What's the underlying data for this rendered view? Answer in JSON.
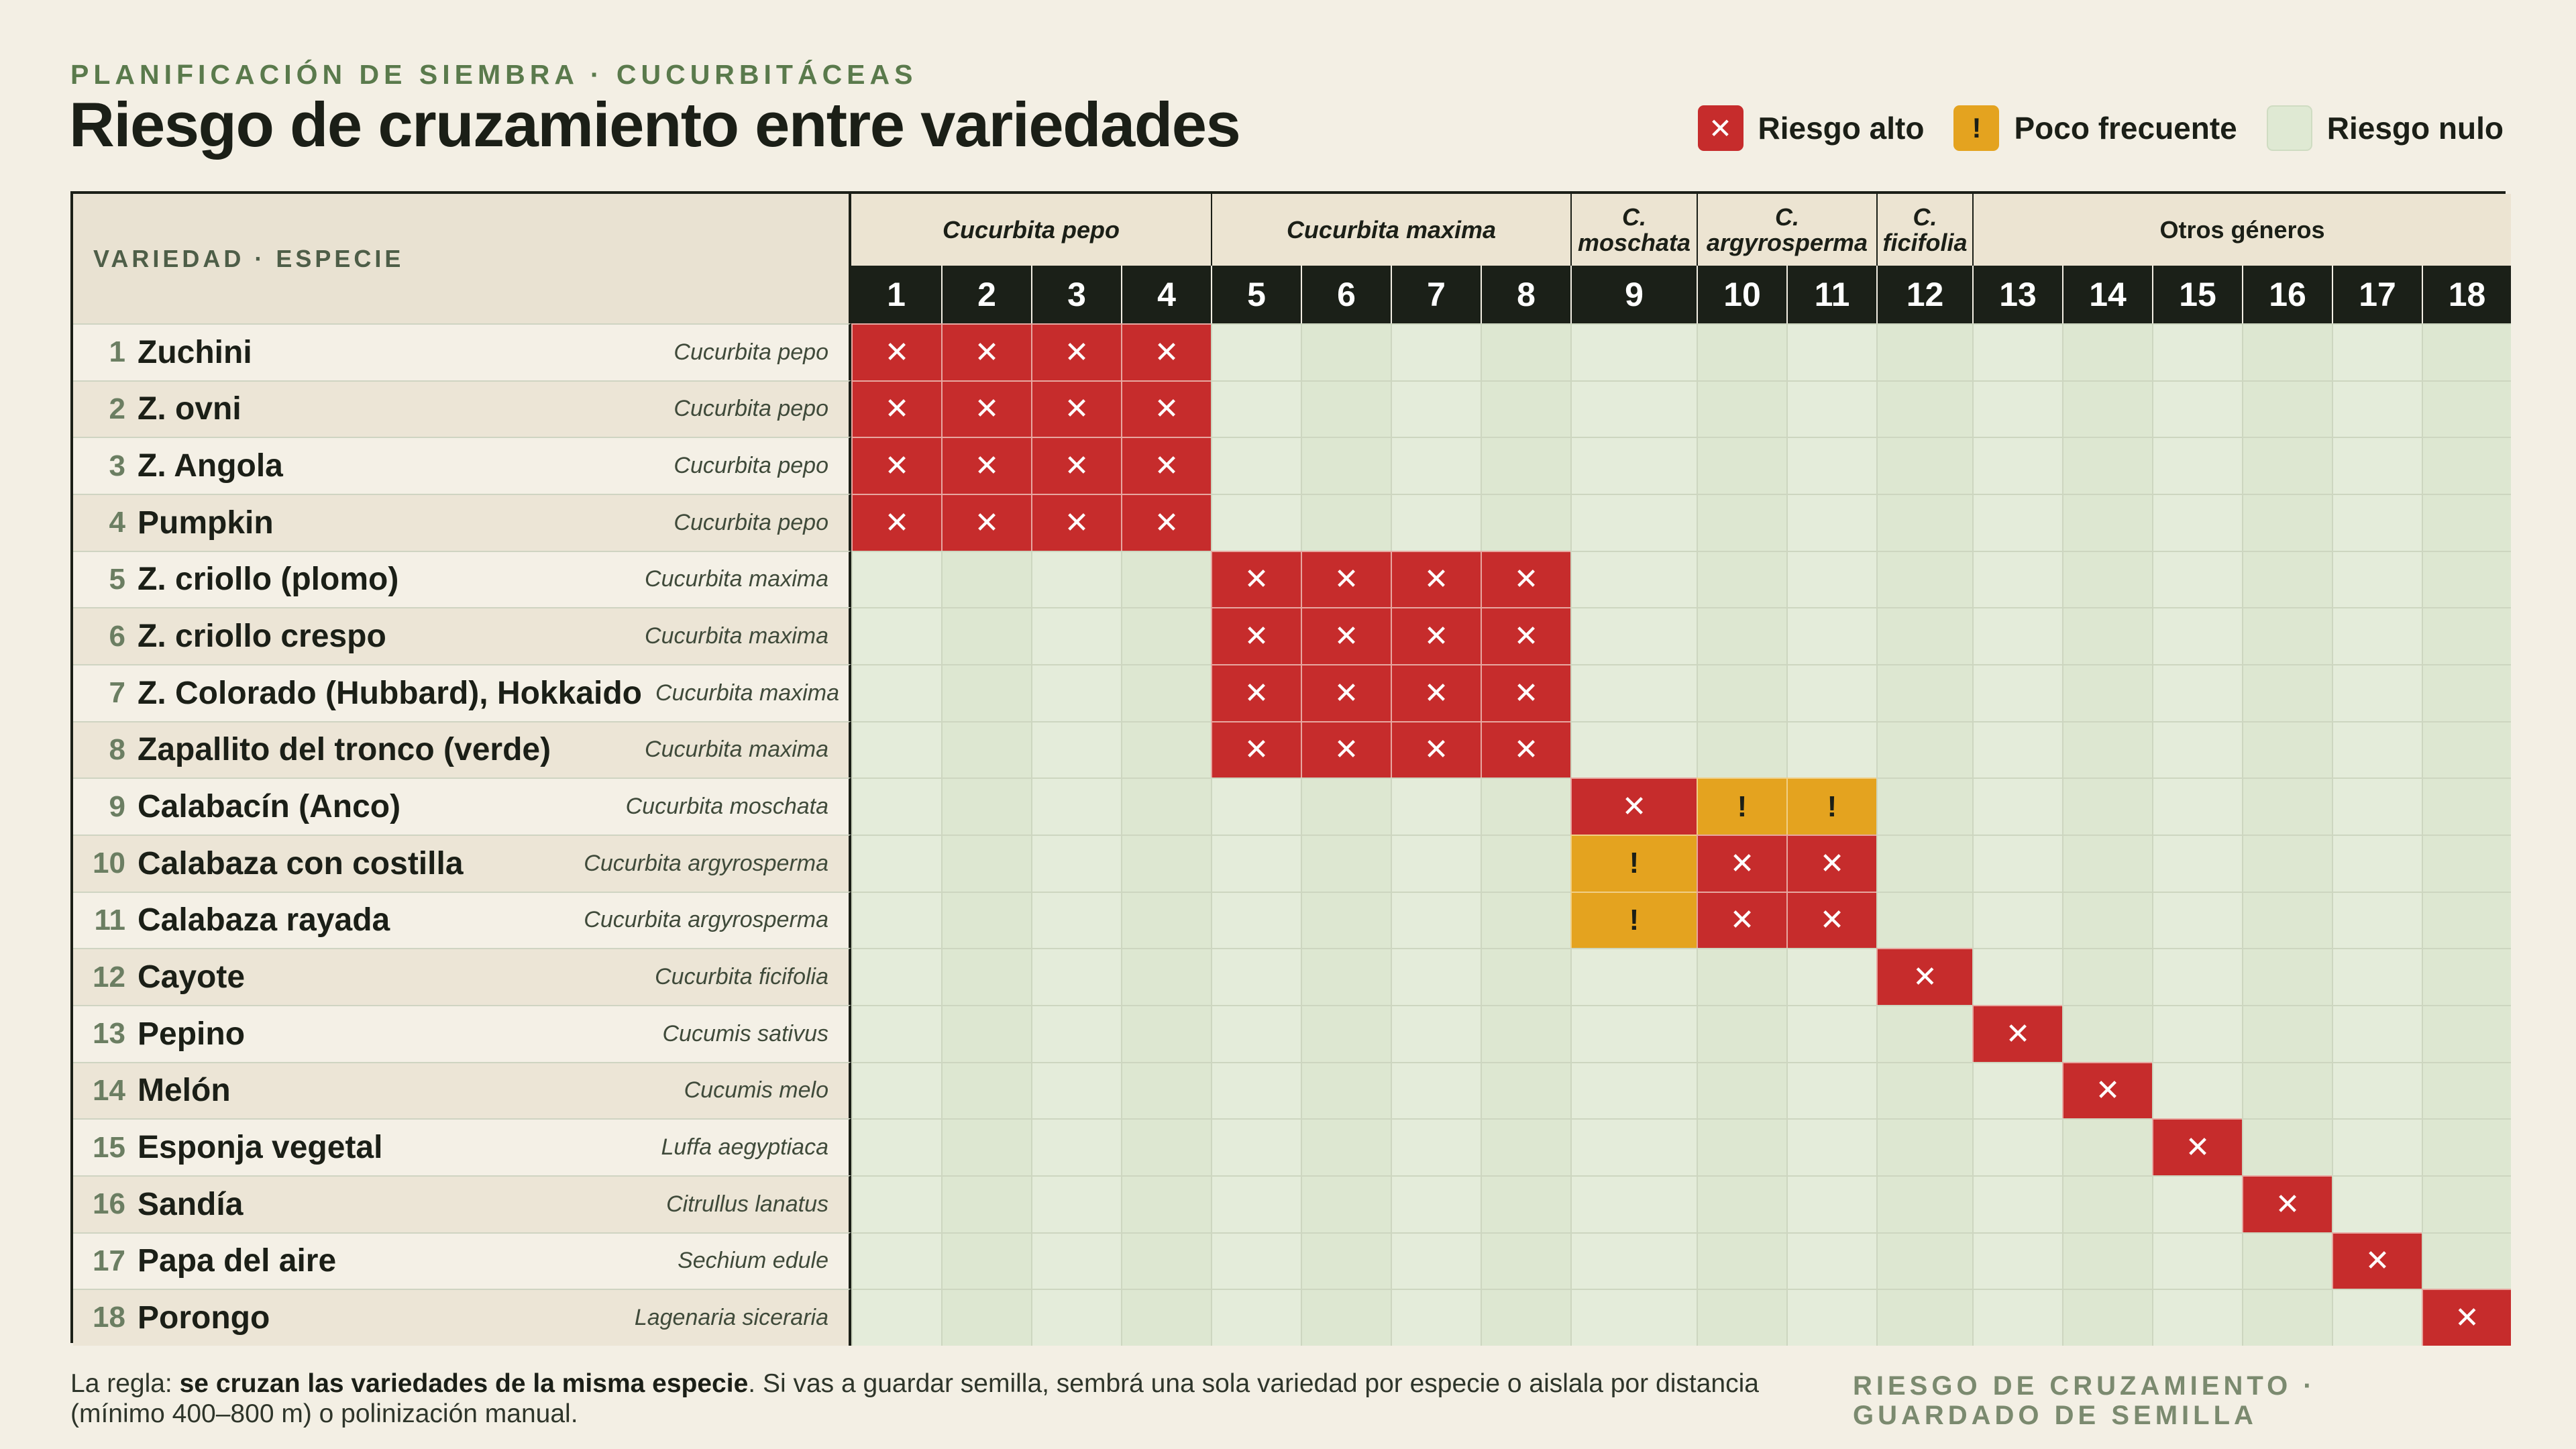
{
  "header": {
    "kicker": "PLANIFICACIÓN DE SIEMBRA · CUCURBITÁCEAS",
    "title": "Riesgo de cruzamiento entre variedades"
  },
  "legend": {
    "items": [
      {
        "label": "Riesgo alto",
        "symbol": "✕",
        "color": "#c62c2c"
      },
      {
        "label": "Poco frecuente",
        "symbol": "!",
        "color": "#e4a31f"
      },
      {
        "label": "Riesgo nulo",
        "symbol": "",
        "color": "#dfe9d3"
      }
    ]
  },
  "table": {
    "corner_label": "VARIEDAD · ESPECIE",
    "groups": [
      {
        "label": "Cucurbita pepo",
        "span": 4,
        "italic": true
      },
      {
        "label": "Cucurbita maxima",
        "span": 4,
        "italic": true
      },
      {
        "label": "C. moschata",
        "span": 1,
        "italic": true
      },
      {
        "label": "C. argyrosperma",
        "span": 2,
        "italic": true
      },
      {
        "label": "C. ficifolia",
        "span": 1,
        "italic": true
      },
      {
        "label": "Otros géneros",
        "span": 6,
        "italic": false
      }
    ],
    "column_numbers": [
      "1",
      "2",
      "3",
      "4",
      "5",
      "6",
      "7",
      "8",
      "9",
      "10",
      "11",
      "12",
      "13",
      "14",
      "15",
      "16",
      "17",
      "18"
    ],
    "symbols": {
      "R": "✕",
      "O": "!",
      "N": ""
    },
    "rows": [
      {
        "num": "1",
        "name": "Zuchini",
        "species": "Cucurbita pepo",
        "cells": [
          "R",
          "R",
          "R",
          "R",
          "N",
          "N",
          "N",
          "N",
          "N",
          "N",
          "N",
          "N",
          "N",
          "N",
          "N",
          "N",
          "N",
          "N"
        ]
      },
      {
        "num": "2",
        "name": "Z. ovni",
        "species": "Cucurbita pepo",
        "cells": [
          "R",
          "R",
          "R",
          "R",
          "N",
          "N",
          "N",
          "N",
          "N",
          "N",
          "N",
          "N",
          "N",
          "N",
          "N",
          "N",
          "N",
          "N"
        ]
      },
      {
        "num": "3",
        "name": "Z. Angola",
        "species": "Cucurbita pepo",
        "cells": [
          "R",
          "R",
          "R",
          "R",
          "N",
          "N",
          "N",
          "N",
          "N",
          "N",
          "N",
          "N",
          "N",
          "N",
          "N",
          "N",
          "N",
          "N"
        ]
      },
      {
        "num": "4",
        "name": "Pumpkin",
        "species": "Cucurbita pepo",
        "cells": [
          "R",
          "R",
          "R",
          "R",
          "N",
          "N",
          "N",
          "N",
          "N",
          "N",
          "N",
          "N",
          "N",
          "N",
          "N",
          "N",
          "N",
          "N"
        ]
      },
      {
        "num": "5",
        "name": "Z. criollo (plomo)",
        "species": "Cucurbita maxima",
        "cells": [
          "N",
          "N",
          "N",
          "N",
          "R",
          "R",
          "R",
          "R",
          "N",
          "N",
          "N",
          "N",
          "N",
          "N",
          "N",
          "N",
          "N",
          "N"
        ]
      },
      {
        "num": "6",
        "name": "Z. criollo crespo",
        "species": "Cucurbita maxima",
        "cells": [
          "N",
          "N",
          "N",
          "N",
          "R",
          "R",
          "R",
          "R",
          "N",
          "N",
          "N",
          "N",
          "N",
          "N",
          "N",
          "N",
          "N",
          "N"
        ]
      },
      {
        "num": "7",
        "name": "Z. Colorado (Hubbard), Hokkaido",
        "species": "Cucurbita maxima",
        "cells": [
          "N",
          "N",
          "N",
          "N",
          "R",
          "R",
          "R",
          "R",
          "N",
          "N",
          "N",
          "N",
          "N",
          "N",
          "N",
          "N",
          "N",
          "N"
        ]
      },
      {
        "num": "8",
        "name": "Zapallito del tronco (verde)",
        "species": "Cucurbita maxima",
        "cells": [
          "N",
          "N",
          "N",
          "N",
          "R",
          "R",
          "R",
          "R",
          "N",
          "N",
          "N",
          "N",
          "N",
          "N",
          "N",
          "N",
          "N",
          "N"
        ]
      },
      {
        "num": "9",
        "name": "Calabacín (Anco)",
        "species": "Cucurbita moschata",
        "cells": [
          "N",
          "N",
          "N",
          "N",
          "N",
          "N",
          "N",
          "N",
          "R",
          "O",
          "O",
          "N",
          "N",
          "N",
          "N",
          "N",
          "N",
          "N"
        ]
      },
      {
        "num": "10",
        "name": "Calabaza con costilla",
        "species": "Cucurbita argyrosperma",
        "cells": [
          "N",
          "N",
          "N",
          "N",
          "N",
          "N",
          "N",
          "N",
          "O",
          "R",
          "R",
          "N",
          "N",
          "N",
          "N",
          "N",
          "N",
          "N"
        ]
      },
      {
        "num": "11",
        "name": "Calabaza rayada",
        "species": "Cucurbita argyrosperma",
        "cells": [
          "N",
          "N",
          "N",
          "N",
          "N",
          "N",
          "N",
          "N",
          "O",
          "R",
          "R",
          "N",
          "N",
          "N",
          "N",
          "N",
          "N",
          "N"
        ]
      },
      {
        "num": "12",
        "name": "Cayote",
        "species": "Cucurbita ficifolia",
        "cells": [
          "N",
          "N",
          "N",
          "N",
          "N",
          "N",
          "N",
          "N",
          "N",
          "N",
          "N",
          "R",
          "N",
          "N",
          "N",
          "N",
          "N",
          "N"
        ]
      },
      {
        "num": "13",
        "name": "Pepino",
        "species": "Cucumis sativus",
        "cells": [
          "N",
          "N",
          "N",
          "N",
          "N",
          "N",
          "N",
          "N",
          "N",
          "N",
          "N",
          "N",
          "R",
          "N",
          "N",
          "N",
          "N",
          "N"
        ]
      },
      {
        "num": "14",
        "name": "Melón",
        "species": "Cucumis melo",
        "cells": [
          "N",
          "N",
          "N",
          "N",
          "N",
          "N",
          "N",
          "N",
          "N",
          "N",
          "N",
          "N",
          "N",
          "R",
          "N",
          "N",
          "N",
          "N"
        ]
      },
      {
        "num": "15",
        "name": "Esponja vegetal",
        "species": "Luffa aegyptiaca",
        "cells": [
          "N",
          "N",
          "N",
          "N",
          "N",
          "N",
          "N",
          "N",
          "N",
          "N",
          "N",
          "N",
          "N",
          "N",
          "R",
          "N",
          "N",
          "N"
        ]
      },
      {
        "num": "16",
        "name": "Sandía",
        "species": "Citrullus lanatus",
        "cells": [
          "N",
          "N",
          "N",
          "N",
          "N",
          "N",
          "N",
          "N",
          "N",
          "N",
          "N",
          "N",
          "N",
          "N",
          "N",
          "R",
          "N",
          "N"
        ]
      },
      {
        "num": "17",
        "name": "Papa del aire",
        "species": "Sechium edule",
        "cells": [
          "N",
          "N",
          "N",
          "N",
          "N",
          "N",
          "N",
          "N",
          "N",
          "N",
          "N",
          "N",
          "N",
          "N",
          "N",
          "N",
          "R",
          "N"
        ]
      },
      {
        "num": "18",
        "name": "Porongo",
        "species": "Lagenaria siceraria",
        "cells": [
          "N",
          "N",
          "N",
          "N",
          "N",
          "N",
          "N",
          "N",
          "N",
          "N",
          "N",
          "N",
          "N",
          "N",
          "N",
          "N",
          "N",
          "R"
        ]
      }
    ]
  },
  "footer": {
    "rule_prefix": "La regla: ",
    "rule_bold": "se cruzan las variedades de la misma especie",
    "rule_rest": ". Si vas a guardar semilla, sembrá una sola variedad por especie o aislala por distancia (mínimo 400–800 m) o polinización manual.",
    "right_label": "RIESGO DE CRUZAMIENTO · GUARDADO DE SEMILLA"
  }
}
